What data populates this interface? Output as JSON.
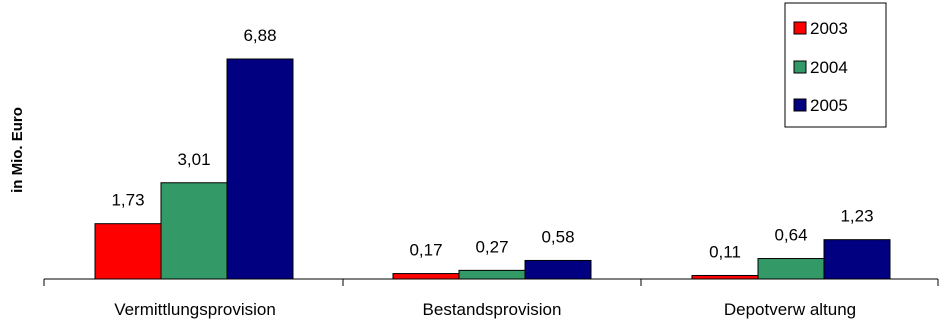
{
  "chart_data": {
    "type": "bar",
    "categories": [
      "Vermittlungsprovision",
      "Bestandsprovision",
      "Depotverw altung"
    ],
    "series": [
      {
        "name": "2003",
        "color": "#ff0000",
        "values": [
          1.73,
          0.17,
          0.11
        ],
        "labels": [
          "1,73",
          "0,17",
          "0,11"
        ]
      },
      {
        "name": "2004",
        "color": "#339966",
        "values": [
          3.01,
          0.27,
          0.64
        ],
        "labels": [
          "3,01",
          "0,27",
          "0,64"
        ]
      },
      {
        "name": "2005",
        "color": "#000080",
        "values": [
          6.88,
          0.58,
          1.23
        ],
        "labels": [
          "6,88",
          "0,58",
          "1,23"
        ]
      }
    ],
    "ylabel": "in Mio. Euro",
    "ylim": [
      0,
      6.88
    ],
    "grid": false,
    "legend_position": "top-right"
  }
}
